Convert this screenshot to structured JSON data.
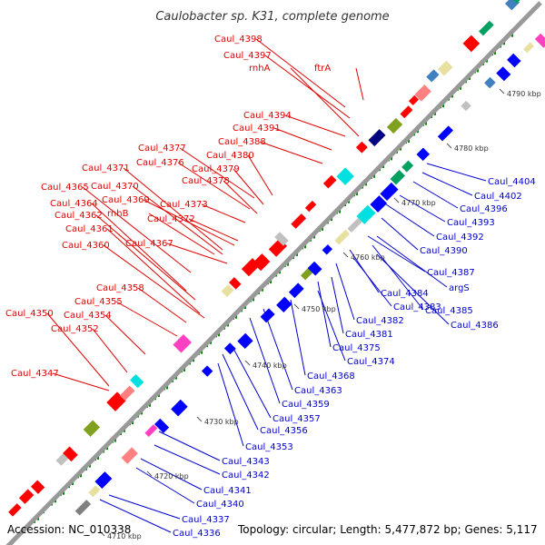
{
  "title": "Caulobacter sp. K31, complete genome",
  "footer": {
    "accession": "Accession: NC_010338",
    "topology": "Topology: circular; Length: 5,477,872 bp; Genes: 5,117"
  },
  "colors": {
    "forward_label": "#e00000",
    "reverse_label": "#0000d0",
    "backbone": "#999999",
    "forward_gene": "#ff0000",
    "reverse_gene": "#0000ff",
    "tick_dot": "#008800"
  },
  "ticks": [
    "4710 kbp",
    "4720 kbp",
    "4730 kbp",
    "4740 kbp",
    "4750 kbp",
    "4760 kbp",
    "4770 kbp",
    "4780 kbp",
    "4790 kbp"
  ],
  "forward_labels": [
    "Caul_4398",
    "Caul_4397",
    "rnhA",
    "ftrA",
    "Caul_4394",
    "Caul_4391",
    "Caul_4388",
    "Caul_4377",
    "Caul_4380",
    "Caul_4376",
    "Caul_4379",
    "Caul_4371",
    "Caul_4378",
    "Caul_4365",
    "Caul_4370",
    "Caul_4369",
    "Caul_4364",
    "Caul_4373",
    "Caul_4362",
    "rnhB",
    "Caul_4372",
    "Caul_4361",
    "Caul_4367",
    "Caul_4360",
    "Caul_4358",
    "Caul_4355",
    "Caul_4350",
    "Caul_4354",
    "Caul_4352",
    "Caul_4347"
  ],
  "reverse_labels": [
    "Caul_4404",
    "Caul_4402",
    "Caul_4396",
    "Caul_4393",
    "Caul_4392",
    "Caul_4390",
    "Caul_4387",
    "argS",
    "Caul_4384",
    "Caul_4383",
    "Caul_4385",
    "Caul_4382",
    "Caul_4386",
    "Caul_4381",
    "Caul_4375",
    "Caul_4374",
    "Caul_4368",
    "Caul_4363",
    "Caul_4359",
    "Caul_4357",
    "Caul_4356",
    "Caul_4353",
    "Caul_4343",
    "Caul_4342",
    "Caul_4341",
    "Caul_4340",
    "Caul_4337",
    "Caul_4336"
  ]
}
